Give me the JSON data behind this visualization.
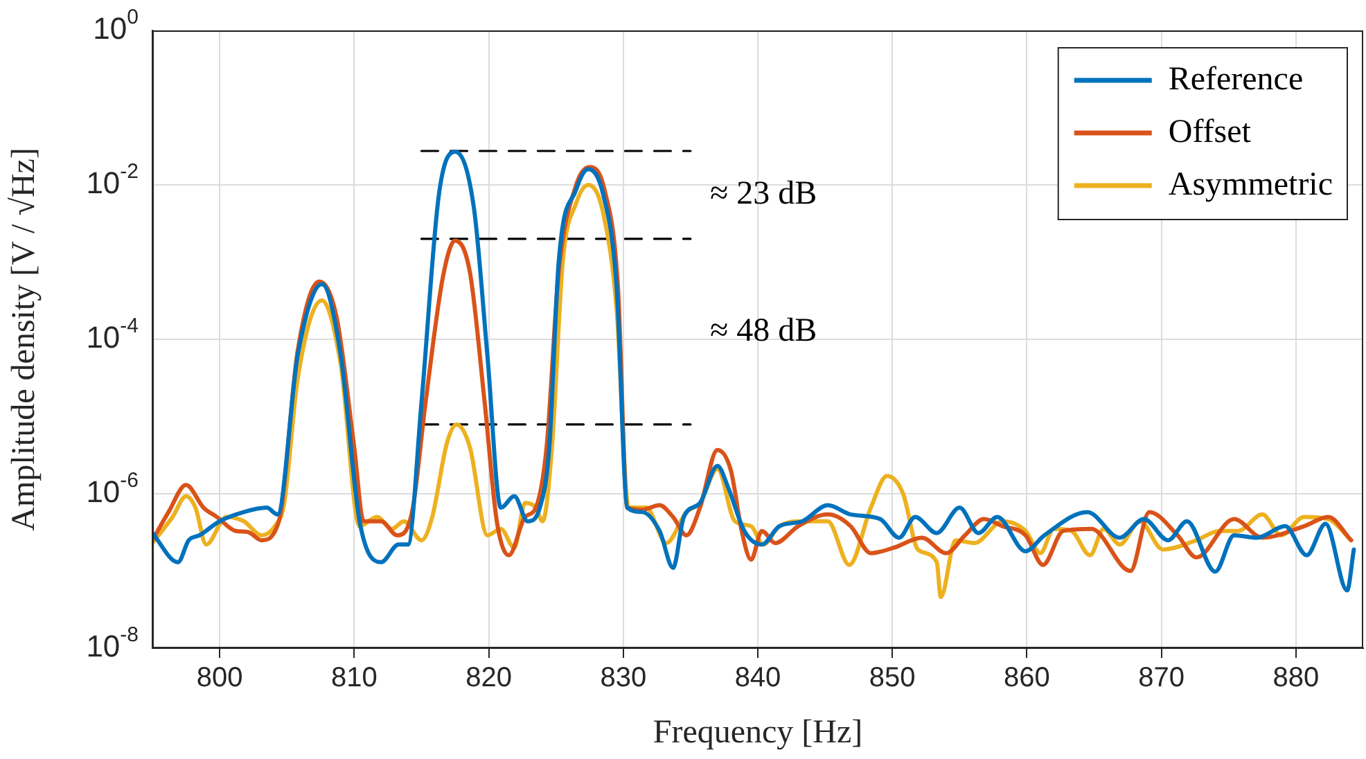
{
  "chart_data": {
    "type": "line",
    "xlabel": "Frequency [Hz]",
    "ylabel": "Amplitude density [V / √Hz]",
    "log": "y",
    "grid": true,
    "legend": "top right",
    "marker": "none",
    "line_style": "solid",
    "xlim": [
      795,
      885
    ],
    "xticks": [
      800,
      810,
      820,
      830,
      840,
      850,
      860,
      870,
      880
    ],
    "ylim": [
      1e-08,
      1
    ],
    "yticks": [
      {
        "value": 1e-08,
        "label": "10$^{-8}$"
      },
      {
        "value": 1e-06,
        "label": "10$^{-6}$"
      },
      {
        "value": 0.0001,
        "label": "10$^{-4}$"
      },
      {
        "value": 0.01,
        "label": "10$^{-2}$"
      },
      {
        "value": 1,
        "label": "10$^{0}$"
      }
    ],
    "series": [
      {
        "name": "Reference",
        "color": "#0072bd",
        "x": [
          795,
          796.9,
          797.7,
          798.5,
          800,
          801.8,
          803.5,
          804.3,
          805.8,
          807.6,
          809.0,
          810.4,
          812.0,
          813.3,
          814.0,
          815.0,
          816.3,
          817.5,
          818.9,
          819.9,
          820.9,
          821.9,
          822.9,
          823.8,
          824.5,
          825.2,
          826.5,
          827.4,
          828.5,
          829.5,
          830.3,
          831.4,
          832.7,
          833.7,
          834.5,
          835.7,
          837.0,
          837.8,
          839.0,
          840.3,
          841.6,
          843.3,
          845.2,
          846.9,
          849.1,
          850.5,
          851.7,
          853.3,
          855.0,
          856.4,
          857.8,
          859.9,
          861.3,
          864.5,
          866.9,
          868.7,
          870.5,
          871.9,
          874.0,
          875.4,
          877.1,
          879.2,
          880.8,
          882.2,
          883.8,
          884.3
        ],
        "values": [
          3.1e-07,
          1.3e-07,
          2.5e-07,
          2.9e-07,
          4.4e-07,
          5.8e-07,
          6.6e-07,
          5.4e-07,
          6.2e-05,
          0.00052,
          6.2e-05,
          4.4e-07,
          1.3e-07,
          2.2e-07,
          2.2e-07,
          1.5e-05,
          0.0076,
          0.027,
          0.005,
          6.2e-05,
          6.6e-07,
          9.3e-07,
          4.4e-07,
          6.6e-07,
          4e-06,
          0.001,
          0.0087,
          0.016,
          0.0076,
          0.00049,
          6.6e-07,
          5.8e-07,
          3.3e-07,
          1.1e-07,
          5e-07,
          7.6e-07,
          2.3e-06,
          1.2e-06,
          3.3e-07,
          2.2e-07,
          3.8e-07,
          4.4e-07,
          7.1e-07,
          5.4e-07,
          4.7e-07,
          2.7e-07,
          5e-07,
          3.1e-07,
          6.6e-07,
          3.1e-07,
          5e-07,
          1.8e-07,
          2.9e-07,
          5.8e-07,
          2.7e-07,
          4.7e-07,
          2.5e-07,
          4.4e-07,
          9.8e-08,
          2.9e-07,
          2.7e-07,
          3.8e-07,
          1.6e-07,
          4.1e-07,
          5.6e-08,
          1.9e-07
        ]
      },
      {
        "name": "Offset",
        "color": "#d95319",
        "x": [
          795,
          796.2,
          797.5,
          798.8,
          799.8,
          801.2,
          802.1,
          803.1,
          804.4,
          805.8,
          807.4,
          808.7,
          810.0,
          810.7,
          812.0,
          813.2,
          814.3,
          815.3,
          816.6,
          817.5,
          818.6,
          819.7,
          820.6,
          821.5,
          822.7,
          823.5,
          824.3,
          825.2,
          826.5,
          827.5,
          828.6,
          829.6,
          830.3,
          831.4,
          832.7,
          833.7,
          834.7,
          835.7,
          837.0,
          838.0,
          838.8,
          839.5,
          840.3,
          841.3,
          843.0,
          845.2,
          846.9,
          848.4,
          850.1,
          852.2,
          854.0,
          855.4,
          856.8,
          858.2,
          859.9,
          861.2,
          862.7,
          864.8,
          867.7,
          869.1,
          871.2,
          872.6,
          875.4,
          877.5,
          880.6,
          882.4,
          884.1
        ],
        "values": [
          2.5e-07,
          5.8e-07,
          1.3e-06,
          6.6e-07,
          5e-07,
          3.3e-07,
          3.2e-07,
          2.5e-07,
          4.4e-07,
          7.1e-05,
          0.00056,
          0.00019,
          4e-06,
          4.4e-07,
          4.4e-07,
          2.9e-07,
          5.8e-07,
          1.5e-05,
          0.00065,
          0.0019,
          0.00074,
          1.5e-05,
          4.4e-07,
          1.6e-07,
          5e-07,
          6.6e-07,
          4e-06,
          0.00074,
          0.01,
          0.017,
          0.0087,
          0.00049,
          6.6e-07,
          6.2e-07,
          7.1e-07,
          5e-07,
          2.9e-07,
          6.6e-07,
          3.7e-06,
          2e-06,
          3.3e-07,
          1.4e-07,
          3.3e-07,
          2.3e-07,
          3.8e-07,
          5.4e-07,
          3.8e-07,
          1.7e-07,
          2e-07,
          2.7e-07,
          1.7e-07,
          2.9e-07,
          4.7e-07,
          3.8e-07,
          2.9e-07,
          1.2e-07,
          3.3e-07,
          3.5e-07,
          1e-07,
          5.8e-07,
          2.9e-07,
          1.5e-07,
          4.7e-07,
          2.7e-07,
          3.8e-07,
          5e-07,
          2.5e-07
        ]
      },
      {
        "name": "Asymmetric",
        "color": "#edb120",
        "x": [
          795,
          796.5,
          797.5,
          798.2,
          799.0,
          800.5,
          801.8,
          803.1,
          804.1,
          804.8,
          805.8,
          807.6,
          809.0,
          810.4,
          811.7,
          812.8,
          813.7,
          815.0,
          815.8,
          816.9,
          817.6,
          818.6,
          819.9,
          820.9,
          821.9,
          822.7,
          823.5,
          824.0,
          824.7,
          825.5,
          826.5,
          827.4,
          828.5,
          829.5,
          830.4,
          831.7,
          833.2,
          834.7,
          835.7,
          837.0,
          838.3,
          839.5,
          840.4,
          841.6,
          843.3,
          845.2,
          846.8,
          848.4,
          849.6,
          850.8,
          851.9,
          853.3,
          853.6,
          854.7,
          856.1,
          858.2,
          859.9,
          861.0,
          862.0,
          863.3,
          864.7,
          865.7,
          866.9,
          868.4,
          870.1,
          872.6,
          874.3,
          875.7,
          877.5,
          878.9,
          880.6,
          882.4,
          884.1
        ],
        "values": [
          2.3e-07,
          5e-07,
          9.3e-07,
          6.6e-07,
          2.2e-07,
          5e-07,
          4.4e-07,
          2.9e-07,
          3.8e-07,
          7.6e-07,
          3.1e-05,
          0.00032,
          4.7e-05,
          3.8e-07,
          5e-07,
          3.5e-07,
          4.4e-07,
          2.5e-07,
          5e-07,
          4.6e-06,
          7.9e-06,
          4e-06,
          2.9e-07,
          3.5e-07,
          2e-07,
          7.6e-07,
          6.6e-07,
          4.4e-07,
          4e-06,
          0.001,
          0.0058,
          0.01,
          0.0044,
          0.00025,
          6.6e-07,
          6.6e-07,
          2.3e-07,
          5.8e-07,
          7.6e-07,
          2.1e-06,
          4.4e-07,
          3.8e-07,
          2.2e-07,
          3.8e-07,
          4.4e-07,
          4.4e-07,
          1.2e-07,
          6.6e-07,
          1.7e-06,
          1e-06,
          1.9e-07,
          1.3e-07,
          4.6e-08,
          2.5e-07,
          2.3e-07,
          4.4e-07,
          3.3e-07,
          1.7e-07,
          3.5e-07,
          3.3e-07,
          1.6e-07,
          3.5e-07,
          2.2e-07,
          4.4e-07,
          1.9e-07,
          2.5e-07,
          3.3e-07,
          3.3e-07,
          5.4e-07,
          2.9e-07,
          5e-07,
          4.7e-07,
          2.5e-07
        ]
      },
      {
        "color": "#000000",
        "line_style": "dashed",
        "x": [
          815,
          835
        ],
        "values": [
          0.0275,
          0.0275
        ]
      },
      {
        "color": "#000000",
        "line_style": "dashed",
        "x": [
          815,
          835
        ],
        "values": [
          0.002,
          0.002
        ]
      },
      {
        "color": "#000000",
        "line_style": "dashed",
        "x": [
          815,
          835
        ],
        "values": [
          7.9e-06,
          7.9e-06
        ]
      }
    ],
    "annotations": [
      "≈ 23 dB",
      "≈ 48 dB"
    ]
  }
}
